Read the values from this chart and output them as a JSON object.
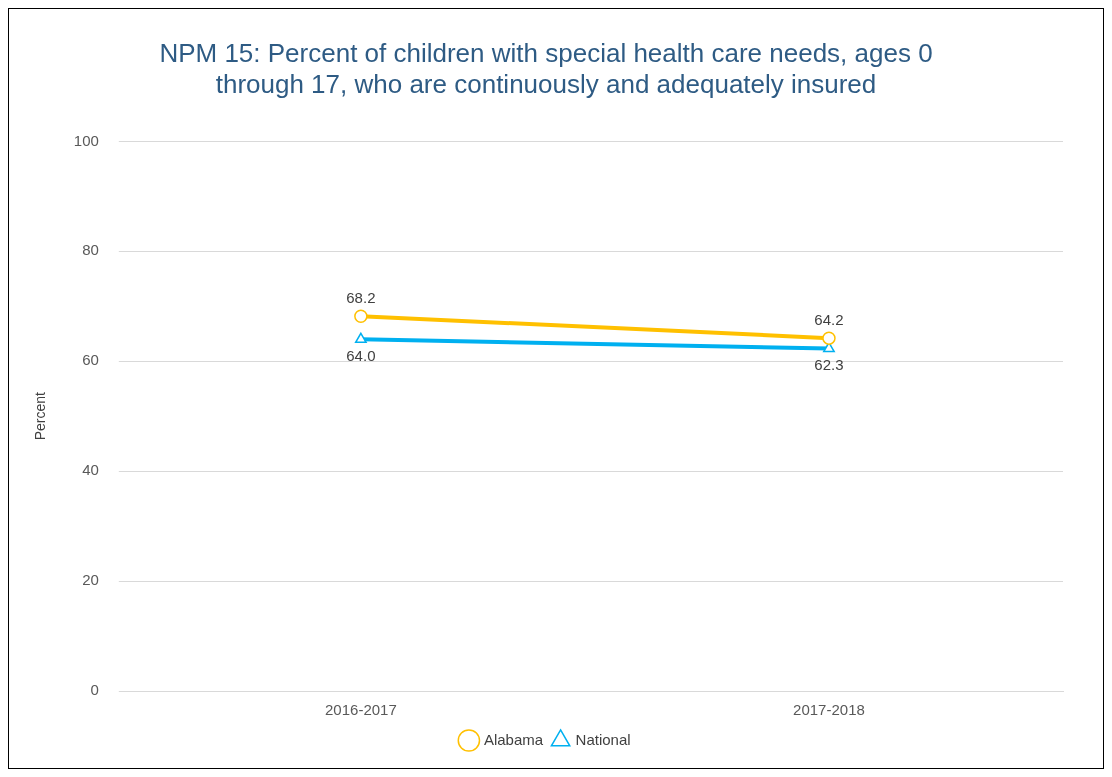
{
  "chart_data": {
    "type": "line",
    "title": "NPM 15: Percent of children with special health care needs, ages 0 through 17, who are continuously and adequately insured",
    "ylabel": "Percent",
    "categories": [
      "2016-2017",
      "2017-2018"
    ],
    "series": [
      {
        "name": "Alabama",
        "color": "#ffc000",
        "values": [
          68.2,
          64.2
        ],
        "value_labels": [
          "68.2",
          "64.2"
        ],
        "marker": "circle"
      },
      {
        "name": "National",
        "color": "#00b0f0",
        "values": [
          64.0,
          62.3
        ],
        "value_labels": [
          "64.0",
          "62.3"
        ],
        "marker": "triangle"
      }
    ],
    "ylim": [
      0,
      100
    ],
    "yticks": [
      0,
      20,
      40,
      60,
      80,
      100
    ],
    "grid": "y",
    "legend": "bottom"
  }
}
